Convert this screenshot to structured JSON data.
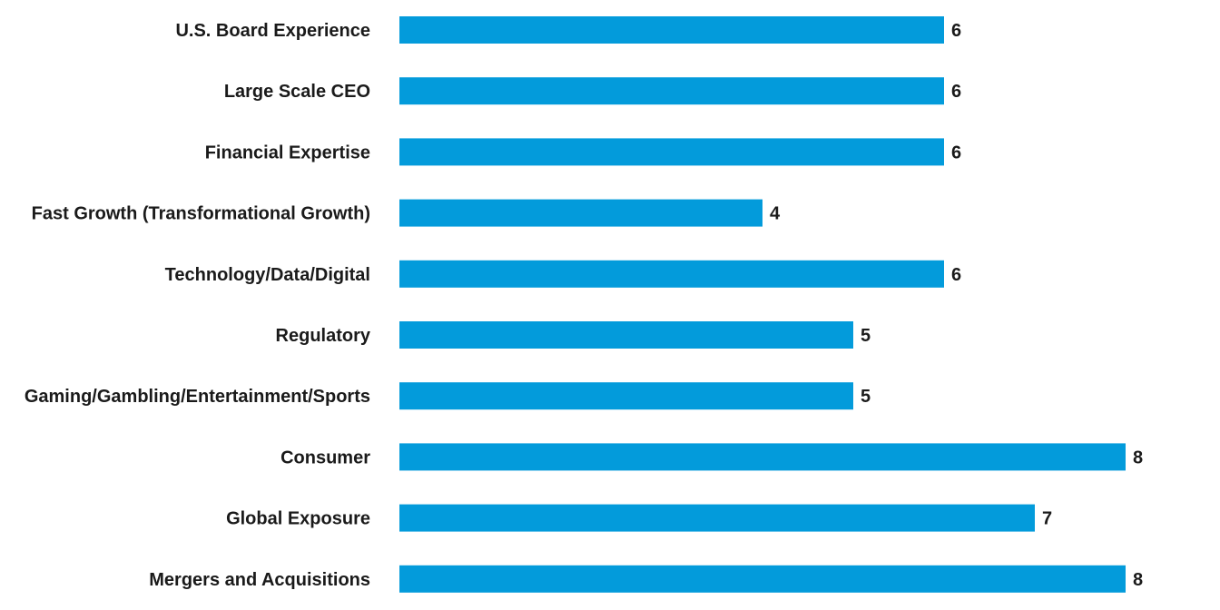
{
  "chart_data": {
    "type": "bar",
    "orientation": "horizontal",
    "title": "",
    "xlabel": "",
    "ylabel": "",
    "xlim": [
      0,
      8
    ],
    "grid": false,
    "legend": "none",
    "bar_color": "#039BDB",
    "categories": [
      "U.S. Board Experience",
      "Large Scale CEO",
      "Financial Expertise",
      "Fast Growth (Transformational Growth)",
      "Technology/Data/Digital",
      "Regulatory",
      "Gaming/Gambling/Entertainment/Sports",
      "Consumer",
      "Global Exposure",
      "Mergers and Acquisitions"
    ],
    "values": [
      6,
      6,
      6,
      4,
      6,
      5,
      5,
      8,
      7,
      8
    ],
    "data_labels": [
      "6",
      "6",
      "6",
      "4",
      "6",
      "5",
      "5",
      "8",
      "7",
      "8"
    ]
  }
}
